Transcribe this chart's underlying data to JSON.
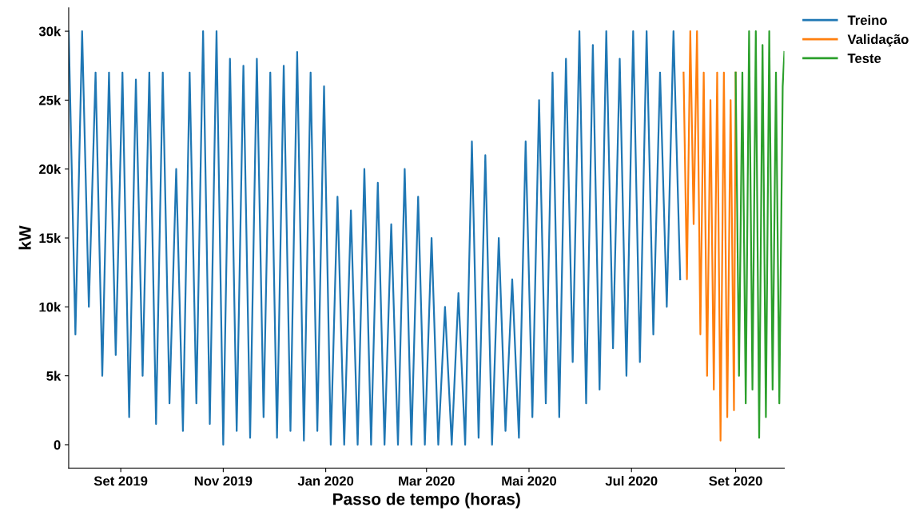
{
  "chart_data": {
    "type": "line",
    "xlabel": "Passo de tempo (horas)",
    "ylabel": "kW",
    "xlim": [
      "2019-08-01",
      "2020-09-30"
    ],
    "xticks": [
      {
        "value": "2019-09-01",
        "label": "Set 2019"
      },
      {
        "value": "2019-11-01",
        "label": "Nov 2019"
      },
      {
        "value": "2020-01-01",
        "label": "Jan 2020"
      },
      {
        "value": "2020-03-01",
        "label": "Mar 2020"
      },
      {
        "value": "2020-05-01",
        "label": "Mai 2020"
      },
      {
        "value": "2020-07-01",
        "label": "Jul 2020"
      },
      {
        "value": "2020-09-01",
        "label": "Set 2020"
      }
    ],
    "ylim": [
      -1700,
      31700
    ],
    "yticks": [
      0,
      {
        "value": 5000,
        "label": "5k"
      },
      {
        "value": 10000,
        "label": "10k"
      },
      {
        "value": 15000,
        "label": "15k"
      },
      {
        "value": 20000,
        "label": "20k"
      },
      {
        "value": 25000,
        "label": "25k"
      },
      {
        "value": 30000,
        "label": "30k"
      }
    ],
    "grid": false,
    "legend": "top right",
    "tick_labels": "xy",
    "series": [
      {
        "name": "Treino",
        "color": "#1f77b4",
        "x": [
          "2019-08-01",
          "2019-08-05",
          "2019-08-09",
          "2019-08-13",
          "2019-08-17",
          "2019-08-21",
          "2019-08-25",
          "2019-08-29",
          "2019-09-02",
          "2019-09-06",
          "2019-09-10",
          "2019-09-14",
          "2019-09-18",
          "2019-09-22",
          "2019-09-26",
          "2019-09-30",
          "2019-10-04",
          "2019-10-08",
          "2019-10-12",
          "2019-10-16",
          "2019-10-20",
          "2019-10-24",
          "2019-10-28",
          "2019-11-01",
          "2019-11-05",
          "2019-11-09",
          "2019-11-13",
          "2019-11-17",
          "2019-11-21",
          "2019-11-25",
          "2019-11-29",
          "2019-12-03",
          "2019-12-07",
          "2019-12-11",
          "2019-12-15",
          "2019-12-19",
          "2019-12-23",
          "2019-12-27",
          "2019-12-31",
          "2020-01-04",
          "2020-01-08",
          "2020-01-12",
          "2020-01-16",
          "2020-01-20",
          "2020-01-24",
          "2020-01-28",
          "2020-02-01",
          "2020-02-05",
          "2020-02-09",
          "2020-02-13",
          "2020-02-17",
          "2020-02-21",
          "2020-02-25",
          "2020-02-29",
          "2020-03-04",
          "2020-03-08",
          "2020-03-12",
          "2020-03-16",
          "2020-03-20",
          "2020-03-24",
          "2020-03-28",
          "2020-04-01",
          "2020-04-05",
          "2020-04-09",
          "2020-04-13",
          "2020-04-17",
          "2020-04-21",
          "2020-04-25",
          "2020-04-29",
          "2020-05-03",
          "2020-05-07",
          "2020-05-11",
          "2020-05-15",
          "2020-05-19",
          "2020-05-23",
          "2020-05-27",
          "2020-05-31",
          "2020-06-04",
          "2020-06-08",
          "2020-06-12",
          "2020-06-16",
          "2020-06-20",
          "2020-06-24",
          "2020-06-28",
          "2020-07-02",
          "2020-07-06",
          "2020-07-10",
          "2020-07-14",
          "2020-07-18",
          "2020-07-22",
          "2020-07-26",
          "2020-07-30"
        ],
        "values": [
          30000,
          8000,
          30000,
          10000,
          27000,
          5000,
          27000,
          6500,
          27000,
          2000,
          26500,
          5000,
          27000,
          1500,
          27000,
          3000,
          20000,
          1000,
          27000,
          3000,
          30000,
          1500,
          30000,
          0,
          28000,
          1000,
          27500,
          500,
          28000,
          2000,
          27000,
          500,
          27500,
          1000,
          28500,
          300,
          27000,
          1000,
          26000,
          0,
          18000,
          0,
          17000,
          0,
          20000,
          0,
          19000,
          0,
          16000,
          0,
          20000,
          0,
          18000,
          0,
          15000,
          0,
          10000,
          0,
          11000,
          0,
          22000,
          500,
          21000,
          0,
          15000,
          1000,
          12000,
          500,
          22000,
          2000,
          25000,
          3000,
          27000,
          2000,
          28000,
          6000,
          30000,
          3000,
          29000,
          4000,
          30000,
          7000,
          28000,
          5000,
          30000,
          6000,
          30000,
          8000,
          27000,
          10000,
          30000,
          12000
        ]
      },
      {
        "name": "Validação",
        "color": "#ff7f0e",
        "x": [
          "2020-08-01",
          "2020-08-03",
          "2020-08-05",
          "2020-08-07",
          "2020-08-09",
          "2020-08-11",
          "2020-08-13",
          "2020-08-15",
          "2020-08-17",
          "2020-08-19",
          "2020-08-21",
          "2020-08-23",
          "2020-08-25",
          "2020-08-27",
          "2020-08-29",
          "2020-08-31",
          "2020-09-01"
        ],
        "values": [
          27000,
          12000,
          30000,
          16000,
          30000,
          8000,
          27000,
          5000,
          25000,
          4000,
          27000,
          300,
          27000,
          2000,
          25000,
          2500,
          27000
        ]
      },
      {
        "name": "Teste",
        "color": "#2ca02c",
        "x": [
          "2020-09-01",
          "2020-09-03",
          "2020-09-05",
          "2020-09-07",
          "2020-09-09",
          "2020-09-11",
          "2020-09-13",
          "2020-09-15",
          "2020-09-17",
          "2020-09-19",
          "2020-09-21",
          "2020-09-23",
          "2020-09-25",
          "2020-09-27",
          "2020-09-29",
          "2020-09-30"
        ],
        "values": [
          27000,
          5000,
          27000,
          3000,
          30000,
          4000,
          30000,
          500,
          29000,
          2000,
          30000,
          4000,
          27000,
          3000,
          26000,
          28500
        ]
      }
    ]
  }
}
